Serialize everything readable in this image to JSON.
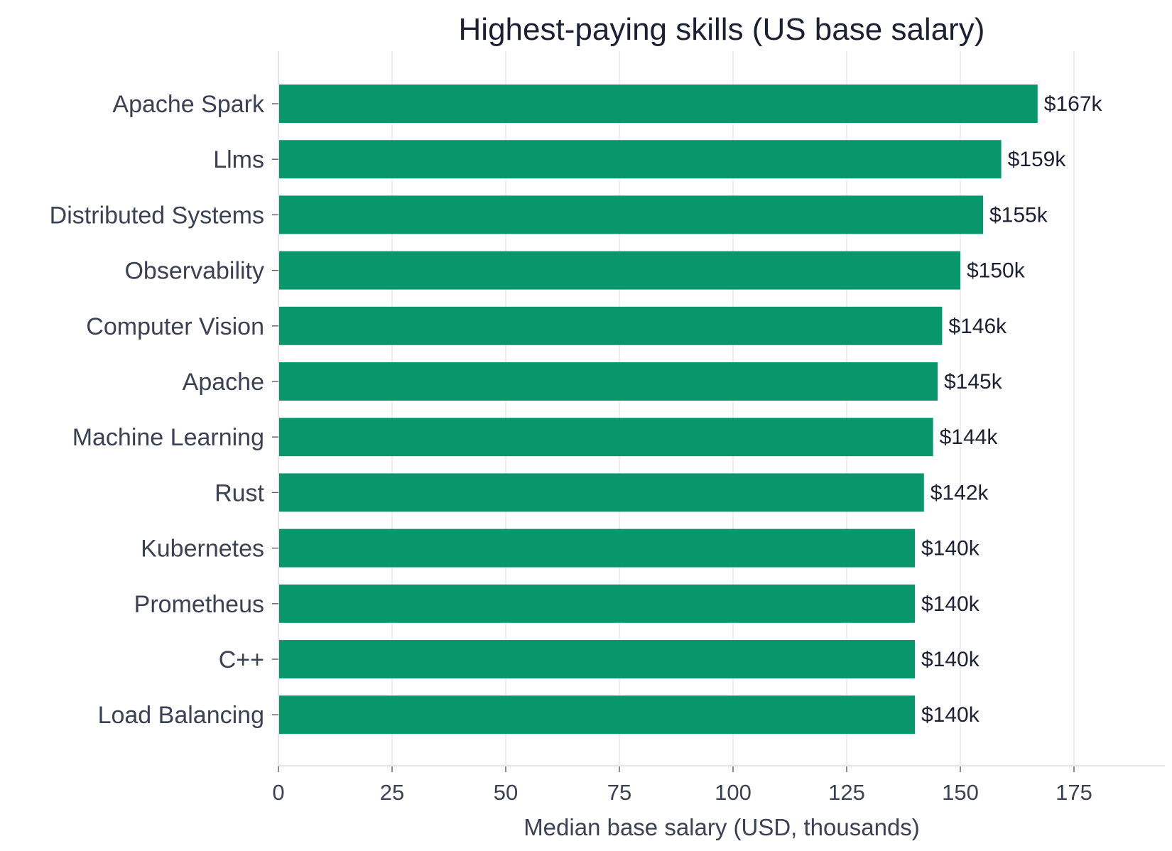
{
  "chart_data": {
    "type": "bar",
    "orientation": "horizontal",
    "title": "Highest-paying skills (US base salary)",
    "xlabel": "Median base salary (USD, thousands)",
    "ylabel": "",
    "xlim": [
      0,
      195
    ],
    "xticks": [
      0,
      25,
      50,
      75,
      100,
      125,
      150,
      175
    ],
    "grid": "vertical",
    "bar_color": "#08976a",
    "categories": [
      "Apache Spark",
      "Llms",
      "Distributed Systems",
      "Observability",
      "Computer Vision",
      "Apache",
      "Machine Learning",
      "Rust",
      "Kubernetes",
      "Prometheus",
      "C++",
      "Load Balancing"
    ],
    "values": [
      167,
      159,
      155,
      150,
      146,
      145,
      144,
      142,
      140,
      140,
      140,
      140
    ],
    "data_labels": [
      "$167k",
      "$159k",
      "$155k",
      "$150k",
      "$146k",
      "$145k",
      "$144k",
      "$142k",
      "$140k",
      "$140k",
      "$140k",
      "$140k"
    ]
  }
}
